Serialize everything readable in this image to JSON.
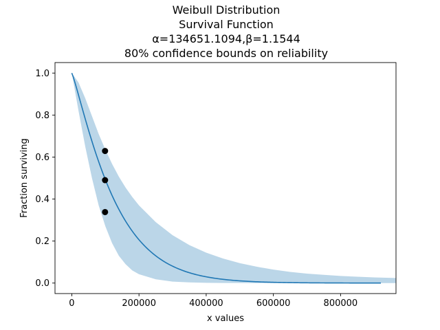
{
  "chart_data": {
    "type": "line",
    "title_lines": [
      "Weibull Distribution",
      "Survival Function",
      "α=134651.1094,β=1.1544",
      "80% confidence bounds on reliability"
    ],
    "xlabel": "x values",
    "ylabel": "Fraction surviving",
    "xlim": [
      -50000,
      965000
    ],
    "ylim": [
      -0.05,
      1.05
    ],
    "x_ticks": [
      0,
      200000,
      400000,
      600000,
      800000
    ],
    "x_tick_labels": [
      "0",
      "200000",
      "400000",
      "600000",
      "800000"
    ],
    "y_ticks": [
      0.0,
      0.2,
      0.4,
      0.6,
      0.8,
      1.0
    ],
    "y_tick_labels": [
      "0.0",
      "0.2",
      "0.4",
      "0.6",
      "0.8",
      "1.0"
    ],
    "grid": false,
    "weibull": {
      "alpha": 134651.1094,
      "beta": 1.1544
    },
    "x_max_curve": 920000,
    "series": [
      {
        "type": "line",
        "color": "#1f77b4",
        "x": [
          0,
          20000,
          40000,
          60000,
          80000,
          100000,
          120000,
          140000,
          160000,
          180000,
          200000,
          250000,
          300000,
          350000,
          400000,
          450000,
          500000,
          550000,
          600000,
          650000,
          700000,
          750000,
          800000,
          850000,
          920000
        ],
        "y": [
          1.0,
          0.8965,
          0.7868,
          0.6838,
          0.5903,
          0.5073,
          0.4344,
          0.3709,
          0.3158,
          0.2685,
          0.2278,
          0.1527,
          0.1017,
          0.0674,
          0.0444,
          0.0292,
          0.0191,
          0.0125,
          0.0081,
          0.0053,
          0.0034,
          0.0022,
          0.0014,
          0.0009,
          0.0005
        ]
      }
    ],
    "confidence_band": {
      "color": "#1f77b4",
      "opacity": 0.3,
      "x": [
        0,
        20000,
        40000,
        60000,
        80000,
        100000,
        120000,
        140000,
        160000,
        180000,
        200000,
        250000,
        300000,
        350000,
        400000,
        450000,
        500000,
        550000,
        600000,
        650000,
        700000,
        750000,
        800000,
        850000,
        900000,
        965000
      ],
      "upper": [
        1.0,
        0.955,
        0.88,
        0.795,
        0.71,
        0.635,
        0.567,
        0.507,
        0.455,
        0.41,
        0.37,
        0.29,
        0.228,
        0.181,
        0.145,
        0.117,
        0.095,
        0.078,
        0.064,
        0.053,
        0.045,
        0.039,
        0.034,
        0.03,
        0.027,
        0.024
      ],
      "lower": [
        1.0,
        0.82,
        0.65,
        0.5,
        0.37,
        0.27,
        0.19,
        0.13,
        0.09,
        0.06,
        0.042,
        0.018,
        0.007,
        0.003,
        0.001,
        0.0005,
        0.0002,
        0.0001,
        0.0,
        0.0,
        0.0,
        0.0,
        0.0,
        0.0,
        0.0,
        0.0
      ]
    },
    "points": {
      "color": "#000000",
      "x": [
        99000,
        99000,
        99000
      ],
      "y": [
        0.629,
        0.49,
        0.338
      ]
    }
  }
}
